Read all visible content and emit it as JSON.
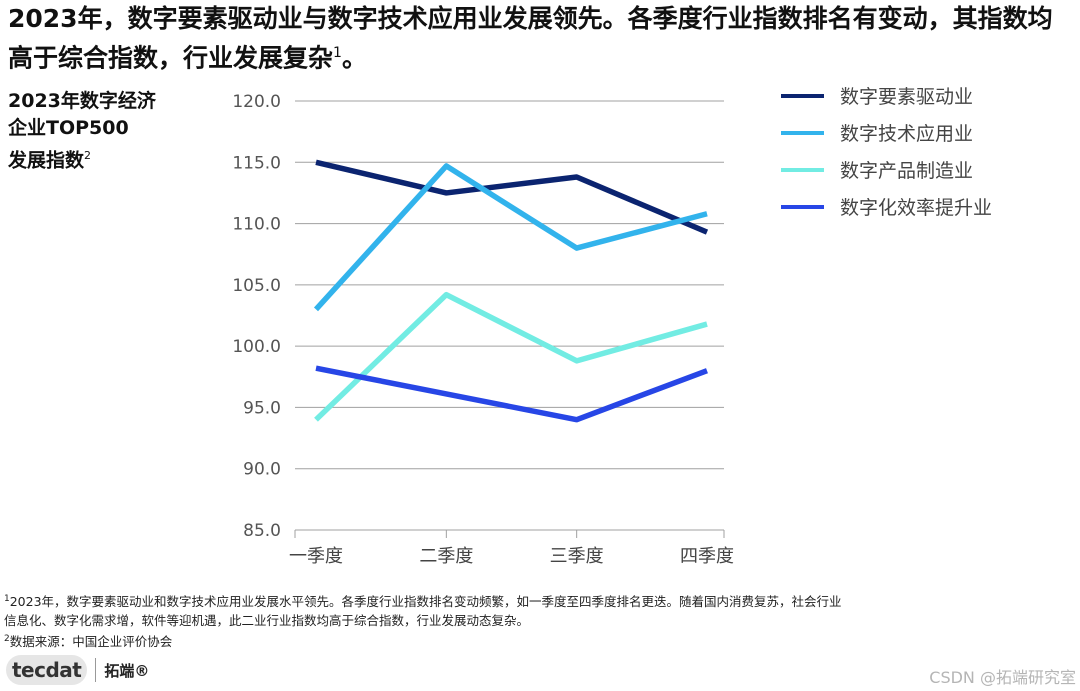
{
  "headline": {
    "text": "2023年，数字要素驱动业与数字技术应用业发展领先。各季度行业指数排名有变动，其指数均高于综合指数，行业发展复杂",
    "sup": "1",
    "end": "。"
  },
  "chart_title": {
    "line1": "2023年数字经济",
    "line2": "企业TOP500",
    "line3": "发展指数",
    "sup": "2"
  },
  "chart_data": {
    "type": "line",
    "categories": [
      "一季度",
      "二季度",
      "三季度",
      "四季度"
    ],
    "ylim": [
      85.0,
      120.0
    ],
    "yticks": [
      "85.0",
      "90.0",
      "95.0",
      "100.0",
      "105.0",
      "110.0",
      "115.0",
      "120.0"
    ],
    "grid": true,
    "legend_position": "top-right",
    "series": [
      {
        "name": "数字要素驱动业",
        "color": "#0b2470",
        "values": [
          115.0,
          112.5,
          113.8,
          109.3
        ]
      },
      {
        "name": "数字技术应用业",
        "color": "#32b3ec",
        "values": [
          103.0,
          114.7,
          108.0,
          110.8
        ]
      },
      {
        "name": "数字产品制造业",
        "color": "#72ece3",
        "values": [
          94.0,
          104.2,
          98.8,
          101.8
        ]
      },
      {
        "name": "数字化效率提升业",
        "color": "#2746e6",
        "values": [
          98.2,
          96.1,
          94.0,
          98.0
        ]
      }
    ]
  },
  "footnotes": {
    "note1_mark": "1",
    "note1_line1": "2023年，数字要素驱动业和数字技术应用业发展水平领先。各季度行业指数排名变动频繁，如一季度至四季度排名更迭。随着国内消费复苏，社会行业",
    "note1_line2": "信息化、数字化需求增，软件等迎机遇，此二业行业指数均高于综合指数，行业发展动态复杂。",
    "note2_mark": "2",
    "note2_text": "数据来源：中国企业评价协会"
  },
  "brand": {
    "mark": "tecdat",
    "name": "拓端®"
  },
  "watermark": "CSDN @拓端研究室"
}
